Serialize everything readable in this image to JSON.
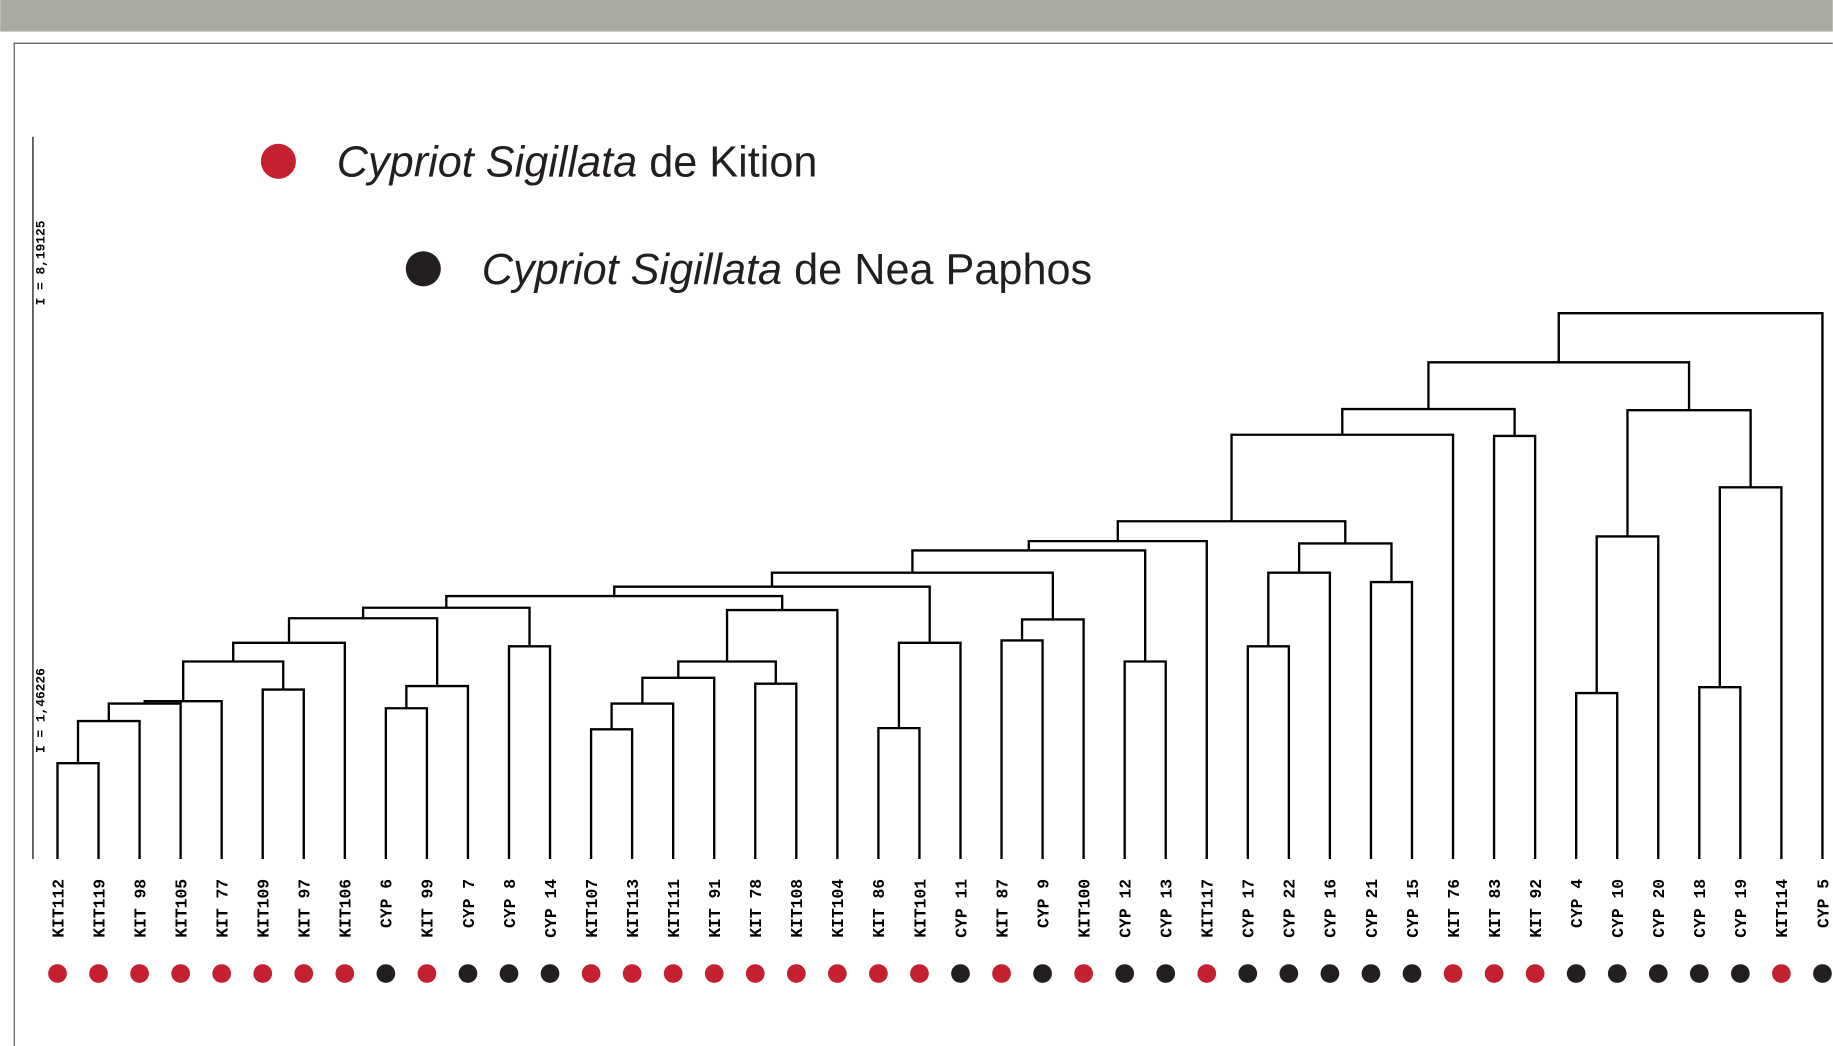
{
  "legend": [
    {
      "italic": "Cypriot Sigillata",
      "text": "de Kition",
      "color": "#c4202f"
    },
    {
      "italic": "Cypriot Sigillata",
      "text": "de Nea Paphos",
      "color": "#231f20"
    }
  ],
  "scale": {
    "top": "I = 8,19125",
    "bottom": "I = 1,46226"
  },
  "leaves": [
    {
      "label": "KIT112",
      "color": "#c4202f"
    },
    {
      "label": "KIT119",
      "color": "#c4202f"
    },
    {
      "label": "KIT 98",
      "color": "#c4202f"
    },
    {
      "label": "KIT105",
      "color": "#c4202f"
    },
    {
      "label": "KIT 77",
      "color": "#c4202f"
    },
    {
      "label": "KIT109",
      "color": "#c4202f"
    },
    {
      "label": "KIT 97",
      "color": "#c4202f"
    },
    {
      "label": "KIT106",
      "color": "#c4202f"
    },
    {
      "label": "CYP 6",
      "color": "#231f20"
    },
    {
      "label": "KIT 99",
      "color": "#c4202f"
    },
    {
      "label": "CYP 7",
      "color": "#231f20"
    },
    {
      "label": "CYP 8",
      "color": "#231f20"
    },
    {
      "label": "CYP 14",
      "color": "#231f20"
    },
    {
      "label": "KIT107",
      "color": "#c4202f"
    },
    {
      "label": "KIT113",
      "color": "#c4202f"
    },
    {
      "label": "KIT111",
      "color": "#c4202f"
    },
    {
      "label": "KIT 91",
      "color": "#c4202f"
    },
    {
      "label": "KIT 78",
      "color": "#c4202f"
    },
    {
      "label": "KIT108",
      "color": "#c4202f"
    },
    {
      "label": "KIT104",
      "color": "#c4202f"
    },
    {
      "label": "KIT 86",
      "color": "#c4202f"
    },
    {
      "label": "KIT101",
      "color": "#c4202f"
    },
    {
      "label": "CYP 11",
      "color": "#231f20"
    },
    {
      "label": "KIT 87",
      "color": "#c4202f"
    },
    {
      "label": "CYP 9",
      "color": "#231f20"
    },
    {
      "label": "KIT100",
      "color": "#c4202f"
    },
    {
      "label": "CYP 12",
      "color": "#231f20"
    },
    {
      "label": "CYP 13",
      "color": "#231f20"
    },
    {
      "label": "KIT117",
      "color": "#c4202f"
    },
    {
      "label": "CYP 17",
      "color": "#231f20"
    },
    {
      "label": "CYP 22",
      "color": "#231f20"
    },
    {
      "label": "CYP 16",
      "color": "#231f20"
    },
    {
      "label": "CYP 21",
      "color": "#231f20"
    },
    {
      "label": "CYP 15",
      "color": "#231f20"
    },
    {
      "label": "KIT 76",
      "color": "#c4202f"
    },
    {
      "label": "KIT 83",
      "color": "#c4202f"
    },
    {
      "label": "KIT 92",
      "color": "#c4202f"
    },
    {
      "label": "CYP 4",
      "color": "#231f20"
    },
    {
      "label": "CYP 10",
      "color": "#231f20"
    },
    {
      "label": "CYP 20",
      "color": "#231f20"
    },
    {
      "label": "CYP 18",
      "color": "#231f20"
    },
    {
      "label": "CYP 19",
      "color": "#231f20"
    },
    {
      "label": "KIT114",
      "color": "#c4202f"
    },
    {
      "label": "CYP 5",
      "color": "#231f20"
    }
  ]
}
